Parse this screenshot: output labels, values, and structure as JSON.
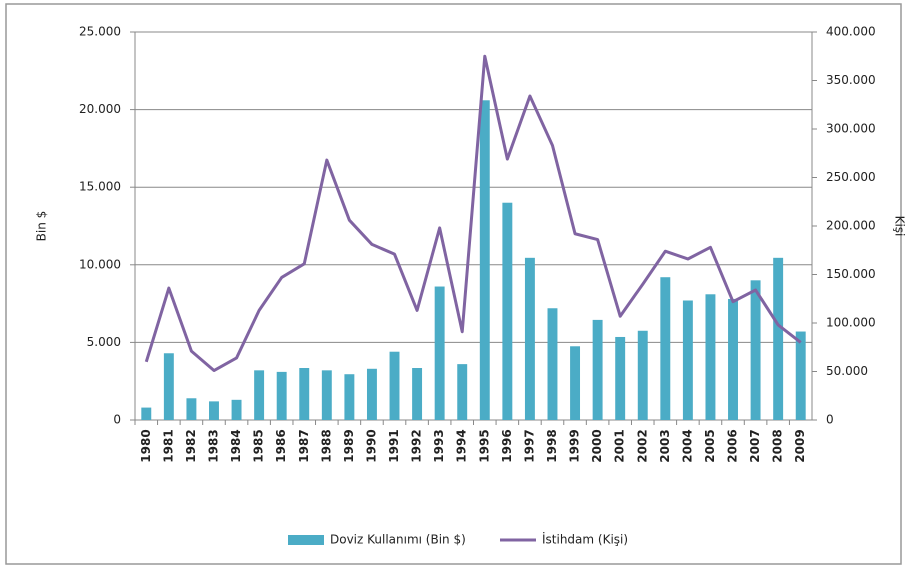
{
  "chart_data": {
    "type": "bar-line",
    "categories": [
      "1980",
      "1981",
      "1982",
      "1983",
      "1984",
      "1985",
      "1986",
      "1987",
      "1988",
      "1989",
      "1990",
      "1991",
      "1992",
      "1993",
      "1994",
      "1995",
      "1996",
      "1997",
      "1998",
      "1999",
      "2000",
      "2001",
      "2002",
      "2003",
      "2004",
      "2005",
      "2006",
      "2007",
      "2008",
      "2009"
    ],
    "series": [
      {
        "name": "Doviz Kullanımı (Bin $)",
        "type": "bar",
        "color": "#4bacc6",
        "axis": "y",
        "values": [
          800,
          4300,
          1400,
          1200,
          1300,
          3200,
          3100,
          3350,
          3200,
          2950,
          3300,
          4400,
          3350,
          8600,
          3600,
          20600,
          14000,
          10450,
          7200,
          4750,
          6450,
          5350,
          5750,
          9200,
          7700,
          8100,
          7800,
          9000,
          10450,
          5700
        ]
      },
      {
        "name": "İstihdam (Kişi)",
        "type": "line",
        "color": "#8064a2",
        "axis": "y2",
        "values": [
          60000,
          136000,
          71000,
          51000,
          64000,
          113000,
          147000,
          161000,
          268000,
          206000,
          181000,
          171000,
          113000,
          198000,
          91000,
          375000,
          269000,
          334000,
          283000,
          192000,
          186000,
          107000,
          140000,
          174000,
          166000,
          178000,
          122000,
          134000,
          98000,
          80000
        ]
      }
    ],
    "ylabel": "Bin $",
    "y2label": "Kişi",
    "ylim": [
      0,
      25000
    ],
    "yticks": [
      0,
      {
        "value": 5000,
        "label": "5.000"
      },
      {
        "value": 10000,
        "label": "10.000"
      },
      {
        "value": 15000,
        "label": "15.000"
      },
      {
        "value": 20000,
        "label": "20.000"
      },
      {
        "value": 25000,
        "label": "25.000"
      }
    ],
    "y2lim": [
      0,
      400000
    ],
    "y2ticks": [
      0,
      {
        "value": 50000,
        "label": "50.000"
      },
      {
        "value": 100000,
        "label": "100.000"
      },
      {
        "value": 150000,
        "label": "150.000"
      },
      {
        "value": 200000,
        "label": "200.000"
      },
      {
        "value": 250000,
        "label": "250.000"
      },
      {
        "value": 300000,
        "label": "300.000"
      },
      {
        "value": 350000,
        "label": "350.000"
      },
      {
        "value": 400000,
        "label": "400.000"
      }
    ],
    "grid": true,
    "legend": "bottom"
  }
}
